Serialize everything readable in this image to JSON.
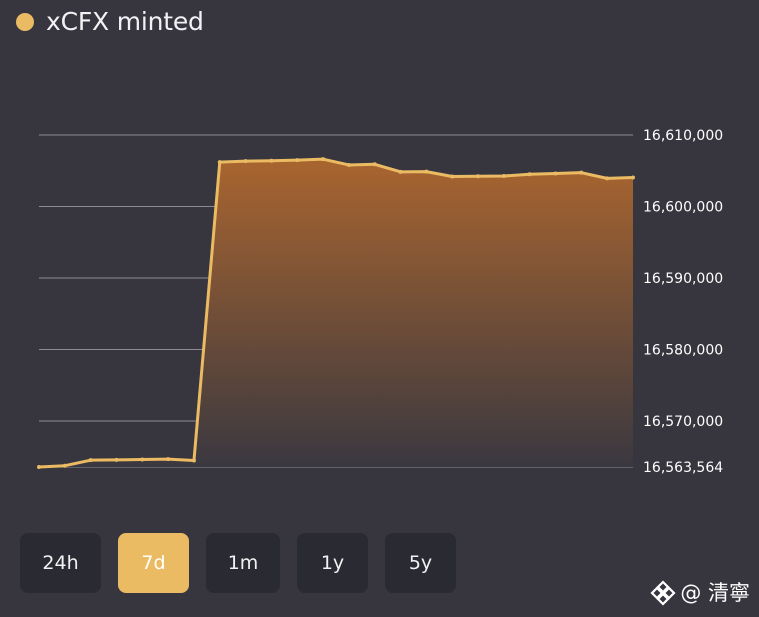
{
  "header": {
    "title": "xCFX minted",
    "dot_color": "#ebbb63"
  },
  "time_ranges": [
    {
      "label": "24h",
      "active": false
    },
    {
      "label": "7d",
      "active": true
    },
    {
      "label": "1m",
      "active": false
    },
    {
      "label": "1y",
      "active": false
    },
    {
      "label": "5y",
      "active": false
    }
  ],
  "watermark": {
    "text": "@ 清寧",
    "icon": "diamond-logo-icon"
  },
  "colors": {
    "background": "#37363f",
    "line": "#ebbb63",
    "area_top": "#a9652f",
    "area_bottom": "#3a3840",
    "grid": "#8c8b93",
    "button_bg": "#2a2a32",
    "button_active_bg": "#ebbb63"
  },
  "chart_data": {
    "type": "area",
    "title": "xCFX minted",
    "xlabel": "",
    "ylabel": "",
    "x_tick_labels_visible": false,
    "y_axis_position": "right",
    "ylim": [
      16563564,
      16610000
    ],
    "y_ticks": [
      16610000,
      16600000,
      16590000,
      16580000,
      16570000,
      16563564
    ],
    "y_tick_labels": [
      "16,610,000",
      "16,600,000",
      "16,590,000",
      "16,580,000",
      "16,570,000",
      "16,563,564"
    ],
    "grid": true,
    "legend": "top-left",
    "series": [
      {
        "name": "xCFX minted",
        "color": "#ebbb63",
        "x": [
          0,
          1,
          2,
          3,
          4,
          5,
          6,
          7,
          8,
          9,
          10,
          11,
          12,
          13,
          14,
          15,
          16,
          17,
          18,
          19,
          20,
          21,
          22,
          23
        ],
        "values": [
          16563564,
          16563750,
          16564520,
          16564560,
          16564610,
          16564660,
          16564470,
          16606200,
          16606350,
          16606400,
          16606480,
          16606620,
          16605810,
          16605900,
          16604850,
          16604880,
          16604200,
          16604230,
          16604260,
          16604510,
          16604610,
          16604730,
          16603930,
          16604050
        ]
      }
    ]
  }
}
